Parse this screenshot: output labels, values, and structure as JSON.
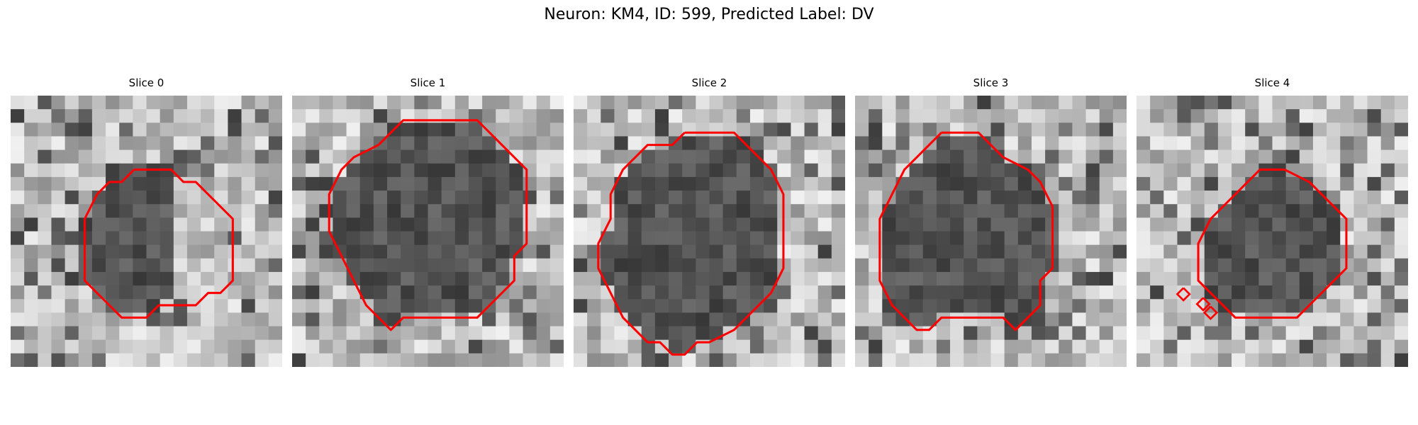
{
  "figure": {
    "title": "Neuron: KM4, ID: 599, Predicted Label: DV"
  },
  "style": {
    "contour_color": "#ff0000",
    "colormap": "grayscale"
  },
  "slices": [
    {
      "label": "Slice 0",
      "image_description": "grayscale texture, dark elongated blob on left of contour",
      "contour": [
        [
          10,
          6
        ],
        [
          13,
          6
        ],
        [
          14,
          7
        ],
        [
          15,
          7
        ],
        [
          17,
          9
        ],
        [
          18,
          10
        ],
        [
          18,
          12
        ],
        [
          18,
          15
        ],
        [
          17,
          16
        ],
        [
          16,
          16
        ],
        [
          15,
          17
        ],
        [
          13,
          17
        ],
        [
          12,
          17
        ],
        [
          11,
          18
        ],
        [
          9,
          18
        ],
        [
          8,
          17
        ],
        [
          7,
          16
        ],
        [
          6,
          15
        ],
        [
          6,
          12
        ],
        [
          6,
          10
        ],
        [
          7,
          8
        ],
        [
          8,
          7
        ],
        [
          9,
          7
        ],
        [
          10,
          6
        ]
      ],
      "extra_contours": []
    },
    {
      "label": "Slice 1",
      "image_description": "grayscale texture, large dark round region inside contour",
      "contour": [
        [
          7,
          4
        ],
        [
          9,
          2
        ],
        [
          12,
          2
        ],
        [
          15,
          2
        ],
        [
          16,
          3
        ],
        [
          17,
          4
        ],
        [
          18,
          5
        ],
        [
          19,
          6
        ],
        [
          19,
          9
        ],
        [
          19,
          12
        ],
        [
          18,
          13
        ],
        [
          18,
          15
        ],
        [
          17,
          16
        ],
        [
          16,
          17
        ],
        [
          15,
          18
        ],
        [
          11,
          18
        ],
        [
          9,
          18
        ],
        [
          8,
          19
        ],
        [
          7,
          18
        ],
        [
          6,
          17
        ],
        [
          5,
          15
        ],
        [
          4,
          13
        ],
        [
          3,
          11
        ],
        [
          3,
          8
        ],
        [
          4,
          6
        ],
        [
          5,
          5
        ],
        [
          7,
          4
        ]
      ],
      "extra_contours": []
    },
    {
      "label": "Slice 2",
      "image_description": "grayscale texture, large dark round region inside contour",
      "contour": [
        [
          9,
          3
        ],
        [
          10,
          3
        ],
        [
          13,
          3
        ],
        [
          14,
          4
        ],
        [
          15,
          5
        ],
        [
          16,
          6
        ],
        [
          17,
          8
        ],
        [
          17,
          11
        ],
        [
          17,
          14
        ],
        [
          16,
          16
        ],
        [
          15,
          17
        ],
        [
          13,
          19
        ],
        [
          11,
          20
        ],
        [
          10,
          20
        ],
        [
          9,
          21
        ],
        [
          8,
          21
        ],
        [
          7,
          20
        ],
        [
          6,
          20
        ],
        [
          5,
          19
        ],
        [
          4,
          18
        ],
        [
          3,
          16
        ],
        [
          2,
          14
        ],
        [
          2,
          12
        ],
        [
          3,
          10
        ],
        [
          3,
          8
        ],
        [
          4,
          6
        ],
        [
          5,
          5
        ],
        [
          6,
          4
        ],
        [
          8,
          4
        ],
        [
          9,
          3
        ]
      ],
      "extra_contours": []
    },
    {
      "label": "Slice 3",
      "image_description": "grayscale texture, dark roughly circular region inside contour",
      "contour": [
        [
          7,
          3
        ],
        [
          10,
          3
        ],
        [
          12,
          5
        ],
        [
          14,
          6
        ],
        [
          15,
          7
        ],
        [
          16,
          9
        ],
        [
          16,
          12
        ],
        [
          16,
          14
        ],
        [
          15,
          15
        ],
        [
          15,
          17
        ],
        [
          14,
          18
        ],
        [
          13,
          19
        ],
        [
          12,
          18
        ],
        [
          9,
          18
        ],
        [
          7,
          18
        ],
        [
          6,
          19
        ],
        [
          5,
          19
        ],
        [
          4,
          18
        ],
        [
          3,
          17
        ],
        [
          2,
          15
        ],
        [
          2,
          12
        ],
        [
          2,
          10
        ],
        [
          3,
          8
        ],
        [
          4,
          6
        ],
        [
          5,
          5
        ],
        [
          6,
          4
        ],
        [
          7,
          3
        ]
      ],
      "extra_contours": []
    },
    {
      "label": "Slice 4",
      "image_description": "grayscale texture, dark region inside contour with small contour blobs at lower left",
      "contour": [
        [
          12,
          6
        ],
        [
          14,
          7
        ],
        [
          15,
          8
        ],
        [
          16,
          9
        ],
        [
          17,
          10
        ],
        [
          17,
          12
        ],
        [
          17,
          14
        ],
        [
          16,
          15
        ],
        [
          15,
          16
        ],
        [
          14,
          17
        ],
        [
          13,
          18
        ],
        [
          12,
          18
        ],
        [
          11,
          18
        ],
        [
          8,
          18
        ],
        [
          7,
          17
        ],
        [
          6,
          16
        ],
        [
          5,
          15
        ],
        [
          5,
          12
        ],
        [
          6,
          10
        ],
        [
          7,
          9
        ],
        [
          8,
          8
        ],
        [
          9,
          7
        ],
        [
          10,
          6
        ],
        [
          12,
          6
        ]
      ],
      "extra_contours": [
        [
          [
            3.8,
            15.6
          ],
          [
            4.3,
            16.1
          ],
          [
            3.8,
            16.6
          ],
          [
            3.3,
            16.1
          ],
          [
            3.8,
            15.6
          ]
        ],
        [
          [
            5.4,
            16.4
          ],
          [
            5.9,
            16.9
          ],
          [
            5.4,
            17.4
          ],
          [
            4.9,
            16.9
          ],
          [
            5.4,
            16.4
          ]
        ],
        [
          [
            6.0,
            17.1
          ],
          [
            6.5,
            17.6
          ],
          [
            6.0,
            18.1
          ],
          [
            5.5,
            17.6
          ],
          [
            6.0,
            17.1
          ]
        ]
      ]
    }
  ]
}
